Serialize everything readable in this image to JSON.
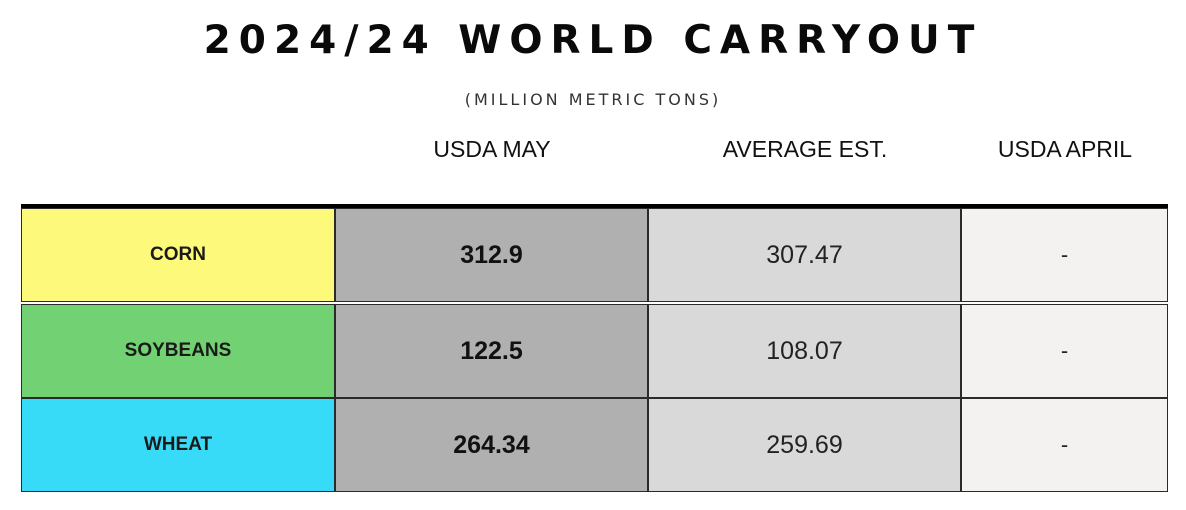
{
  "title": "2024/24 WORLD CARRYOUT",
  "subtitle": "(MILLION METRIC TONS)",
  "columns": [
    "USDA MAY",
    "AVERAGE EST.",
    "USDA APRIL"
  ],
  "colors": {
    "corn": "#fdf97a",
    "soybeans": "#72d172",
    "wheat": "#38dbf7",
    "usda_may_bg": "#b0b0b0",
    "average_bg": "#d9d9d9",
    "april_bg": "#f4f2f1"
  },
  "rows": [
    {
      "name": "CORN",
      "usda_may": "312.9",
      "average_est": "307.47",
      "usda_april": "-"
    },
    {
      "name": "SOYBEANS",
      "usda_may": "122.5",
      "average_est": "108.07",
      "usda_april": "-"
    },
    {
      "name": "WHEAT",
      "usda_may": "264.34",
      "average_est": "259.69",
      "usda_april": "-"
    }
  ]
}
